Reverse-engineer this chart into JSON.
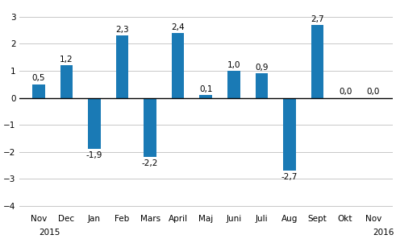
{
  "categories": [
    "Nov",
    "Dec",
    "Jan",
    "Feb",
    "Mars",
    "April",
    "Maj",
    "Juni",
    "Juli",
    "Aug",
    "Sept",
    "Okt",
    "Nov"
  ],
  "values": [
    0.5,
    1.2,
    -1.9,
    2.3,
    -2.2,
    2.4,
    0.1,
    1.0,
    0.9,
    -2.7,
    2.7,
    0.0,
    0.0
  ],
  "labels": [
    "0,5",
    "1,2",
    "-1,9",
    "2,3",
    "-2,2",
    "2,4",
    "0,1",
    "1,0",
    "0,9",
    "-2,7",
    "2,7",
    "0,0",
    "0,0"
  ],
  "bar_color": "#1a7ab5",
  "ylim": [
    -4.2,
    3.5
  ],
  "yticks": [
    -4,
    -3,
    -2,
    -1,
    0,
    1,
    2,
    3
  ],
  "grid_color": "#c8c8c8",
  "background_color": "#ffffff",
  "label_fontsize": 7.5,
  "tick_fontsize": 7.5,
  "year_fontsize": 7.5,
  "bar_width": 0.45
}
